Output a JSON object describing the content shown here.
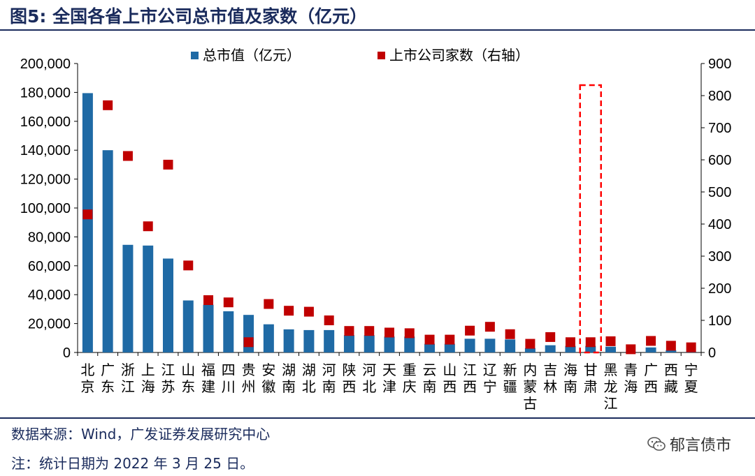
{
  "title": "图5:  全国各省上市公司总市值及家数（亿元）",
  "source": "数据来源：Wind，广发证券发展研究中心",
  "note": "注：统计日期为 2022 年 3 月 25 日。",
  "watermark": "郁言债市",
  "watermark_icon": "wechat-icon",
  "colors": {
    "bar": "#1f6aa5",
    "marker": "#c00000",
    "highlight": "#ff0000",
    "text": "#000000",
    "title": "#1a2b5c"
  },
  "chart_data": {
    "type": "bar",
    "categories": [
      "北京",
      "广东",
      "浙江",
      "上海",
      "江苏",
      "山东",
      "福建",
      "四川",
      "贵州",
      "安徽",
      "湖南",
      "湖北",
      "河南",
      "陕西",
      "河北",
      "天津",
      "重庆",
      "云南",
      "山西",
      "江西",
      "辽宁",
      "新疆",
      "内蒙古",
      "吉林",
      "海南",
      "甘肃",
      "黑龙江",
      "青海",
      "广西",
      "西藏",
      "宁夏"
    ],
    "category_lines": [
      [
        "北",
        "京"
      ],
      [
        "广",
        "东"
      ],
      [
        "浙",
        "江"
      ],
      [
        "上",
        "海"
      ],
      [
        "江",
        "苏"
      ],
      [
        "山",
        "东"
      ],
      [
        "福",
        "建"
      ],
      [
        "四",
        "川"
      ],
      [
        "贵",
        "州"
      ],
      [
        "安",
        "徽"
      ],
      [
        "湖",
        "南"
      ],
      [
        "湖",
        "北"
      ],
      [
        "河",
        "南"
      ],
      [
        "陕",
        "西"
      ],
      [
        "河",
        "北"
      ],
      [
        "天",
        "津"
      ],
      [
        "重",
        "庆"
      ],
      [
        "云",
        "南"
      ],
      [
        "山",
        "西"
      ],
      [
        "江",
        "西"
      ],
      [
        "辽",
        "宁"
      ],
      [
        "新",
        "疆"
      ],
      [
        "内",
        "蒙",
        "古"
      ],
      [
        "吉",
        "林"
      ],
      [
        "海",
        "南"
      ],
      [
        "甘",
        "肃"
      ],
      [
        "黑",
        "龙",
        "江"
      ],
      [
        "青",
        "海"
      ],
      [
        "广",
        "西"
      ],
      [
        "西",
        "藏"
      ],
      [
        "宁",
        "夏"
      ]
    ],
    "series": [
      {
        "name": "总市值（亿元）",
        "type": "bar",
        "axis": "left",
        "values": [
          179500,
          140000,
          74500,
          74000,
          65000,
          36000,
          33000,
          28500,
          26000,
          19500,
          16000,
          15500,
          15500,
          12000,
          12000,
          11000,
          11000,
          6000,
          6000,
          9500,
          9500,
          9000,
          3000,
          5000,
          4500,
          4500,
          4000,
          500,
          3500,
          1500,
          500
        ]
      },
      {
        "name": "上市公司家数（右轴）",
        "type": "scatter",
        "axis": "right",
        "values": [
          430,
          770,
          612,
          393,
          585,
          271,
          163,
          156,
          32,
          151,
          130,
          127,
          100,
          67,
          67,
          62,
          60,
          40,
          40,
          68,
          80,
          57,
          27,
          48,
          32,
          32,
          35,
          10,
          36,
          21,
          16
        ]
      }
    ],
    "y_left": {
      "min": 0,
      "max": 200000,
      "ticks": [
        "0",
        "20,000",
        "40,000",
        "60,000",
        "80,000",
        "100,000",
        "120,000",
        "140,000",
        "160,000",
        "180,000",
        "200,000"
      ]
    },
    "y_right": {
      "min": 0,
      "max": 900,
      "ticks": [
        "0",
        "100",
        "200",
        "300",
        "400",
        "500",
        "600",
        "700",
        "800",
        "900"
      ]
    },
    "legend": [
      "总市值（亿元）",
      "上市公司家数（右轴）"
    ],
    "legend_position": "top-center",
    "highlight": "甘肃",
    "grid": false
  }
}
